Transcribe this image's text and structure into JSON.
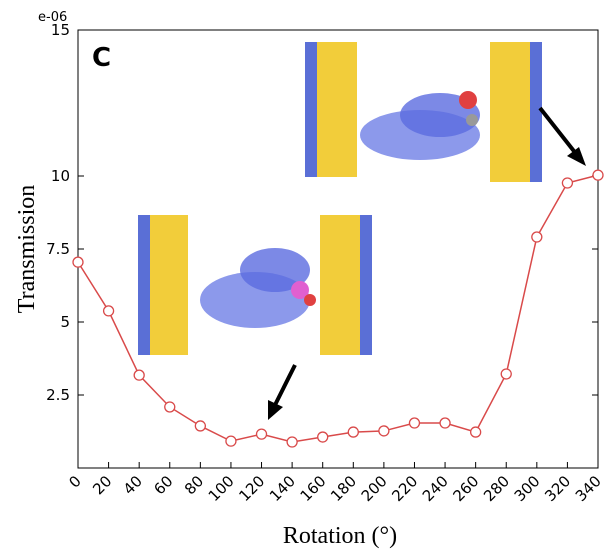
{
  "chart_data": {
    "type": "line",
    "panel_label": "C",
    "y_offset_label": "e-06",
    "xlabel": "Rotation (°)",
    "ylabel": "Transmission",
    "x": [
      0,
      20,
      40,
      60,
      80,
      100,
      120,
      140,
      160,
      180,
      200,
      220,
      240,
      260,
      280,
      300,
      320,
      340
    ],
    "series": [
      {
        "color": "#d94a4a",
        "values": [
          7.05,
          5.38,
          3.18,
          2.09,
          1.44,
          0.92,
          1.16,
          0.89,
          1.06,
          1.23,
          1.27,
          1.54,
          1.54,
          1.23,
          3.22,
          7.91,
          9.76,
          10.03
        ]
      }
    ],
    "xlim": [
      0,
      340
    ],
    "xticks": [
      0,
      20,
      40,
      60,
      80,
      100,
      120,
      140,
      160,
      180,
      200,
      220,
      240,
      260,
      280,
      300,
      320,
      340
    ],
    "ylim": [
      0,
      15
    ],
    "yticks": [
      2.5,
      5,
      7.5,
      10,
      15
    ]
  }
}
